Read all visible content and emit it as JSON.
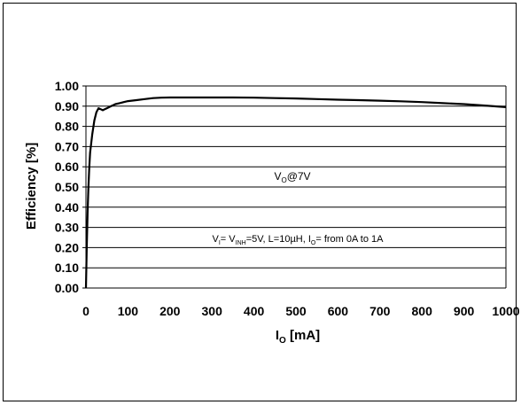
{
  "chart_data": {
    "type": "line",
    "ylabel": "Efficiency [%]",
    "xlabel": {
      "main": "I",
      "sub": "O",
      "rest": " [mA]"
    },
    "xlim": [
      0,
      1000
    ],
    "ylim": [
      0,
      1.0
    ],
    "x_ticks": [
      "0",
      "100",
      "200",
      "300",
      "400",
      "500",
      "600",
      "700",
      "800",
      "900",
      "1000"
    ],
    "y_ticks": [
      "0.00",
      "0.10",
      "0.20",
      "0.30",
      "0.40",
      "0.50",
      "0.60",
      "0.70",
      "0.80",
      "0.90",
      "1.00"
    ],
    "grid": "horizontal",
    "annotations": {
      "vo": {
        "main": "V",
        "sub": "O",
        "rest": "@7V"
      },
      "cond": {
        "p1": "V",
        "s1": "I",
        "p2": "= V",
        "s2": "INH",
        "p3": "=5V, L=10µH, I",
        "s3": "O",
        "p4": "= from 0A to 1A"
      }
    },
    "series": [
      {
        "x": [
          0,
          2,
          4,
          6,
          8,
          10,
          15,
          20,
          25,
          30,
          35,
          40,
          45,
          50,
          60,
          70,
          80,
          90,
          100,
          120,
          140,
          160,
          180,
          200,
          250,
          300,
          350,
          400,
          450,
          500,
          550,
          600,
          650,
          700,
          750,
          800,
          850,
          900,
          950,
          1000
        ],
        "y": [
          0.0,
          0.2,
          0.38,
          0.5,
          0.6,
          0.67,
          0.76,
          0.83,
          0.87,
          0.89,
          0.885,
          0.88,
          0.885,
          0.89,
          0.9,
          0.91,
          0.915,
          0.92,
          0.925,
          0.93,
          0.935,
          0.94,
          0.942,
          0.943,
          0.943,
          0.943,
          0.943,
          0.942,
          0.94,
          0.938,
          0.935,
          0.932,
          0.93,
          0.927,
          0.924,
          0.92,
          0.915,
          0.91,
          0.903,
          0.895
        ]
      }
    ]
  }
}
